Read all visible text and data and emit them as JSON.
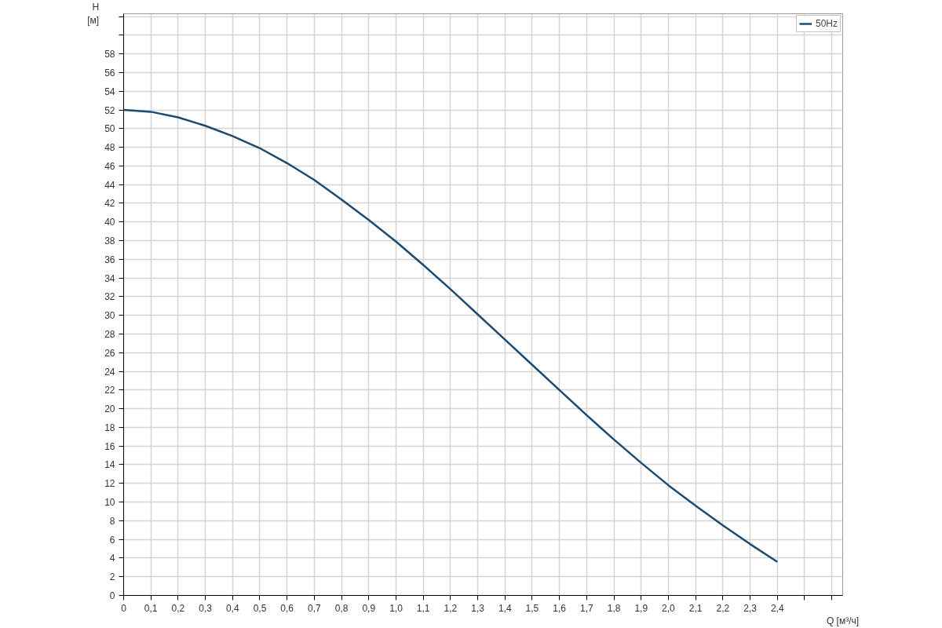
{
  "chart_data": {
    "type": "line",
    "xlabel": "Q [м³/ч]",
    "ylabel": "H [м]",
    "x": [
      0,
      0.1,
      0.2,
      0.3,
      0.4,
      0.5,
      0.6,
      0.7,
      0.8,
      0.9,
      1.0,
      1.1,
      1.2,
      1.3,
      1.4,
      1.5,
      1.6,
      1.7,
      1.8,
      1.9,
      2.0,
      2.1,
      2.2,
      2.3,
      2.4
    ],
    "series": [
      {
        "name": "50Hz",
        "color": "#1d4a6e",
        "values": [
          52,
          51.8,
          51.2,
          50.3,
          49.2,
          47.9,
          46.3,
          44.5,
          42.4,
          40.2,
          37.9,
          35.4,
          32.8,
          30.1,
          27.4,
          24.7,
          22.0,
          19.3,
          16.7,
          14.2,
          11.8,
          9.6,
          7.5,
          5.5,
          3.6
        ]
      }
    ],
    "xlim": [
      0,
      2.64
    ],
    "ylim": [
      0,
      62.3
    ],
    "xticks": [
      0,
      {
        "value": 0.1,
        "label": "0,1"
      },
      {
        "value": 0.2,
        "label": "0,2"
      },
      {
        "value": 0.3,
        "label": "0,3"
      },
      {
        "value": 0.4,
        "label": "0,4"
      },
      {
        "value": 0.5,
        "label": "0,5"
      },
      {
        "value": 0.6,
        "label": "0,6"
      },
      {
        "value": 0.7,
        "label": "0,7"
      },
      {
        "value": 0.8,
        "label": "0,8"
      },
      {
        "value": 0.9,
        "label": "0,9"
      },
      {
        "value": 1.0,
        "label": "1,0"
      },
      {
        "value": 1.1,
        "label": "1,1"
      },
      {
        "value": 1.2,
        "label": "1,2"
      },
      {
        "value": 1.3,
        "label": "1,3"
      },
      {
        "value": 1.4,
        "label": "1,4"
      },
      {
        "value": 1.5,
        "label": "1,5"
      },
      {
        "value": 1.6,
        "label": "1,6"
      },
      {
        "value": 1.7,
        "label": "1,7"
      },
      {
        "value": 1.8,
        "label": "1,8"
      },
      {
        "value": 1.9,
        "label": "1,9"
      },
      {
        "value": 2.0,
        "label": "2,0"
      },
      {
        "value": 2.1,
        "label": "2,1"
      },
      {
        "value": 2.2,
        "label": "2,2"
      },
      {
        "value": 2.3,
        "label": "2,3"
      },
      {
        "value": 2.4,
        "label": "2,4"
      },
      {
        "value": 2.5,
        "label": null
      },
      {
        "value": 2.6,
        "label": null
      }
    ],
    "yticks": [
      0,
      2,
      4,
      6,
      8,
      10,
      12,
      14,
      16,
      18,
      20,
      22,
      24,
      26,
      28,
      30,
      32,
      34,
      36,
      38,
      40,
      42,
      44,
      46,
      48,
      50,
      52,
      54,
      56,
      58,
      {
        "value": 60,
        "label": null
      },
      {
        "value": 62,
        "label": null
      }
    ],
    "grid": true,
    "legend": "top right",
    "line_style": "solid",
    "marker": "none"
  }
}
